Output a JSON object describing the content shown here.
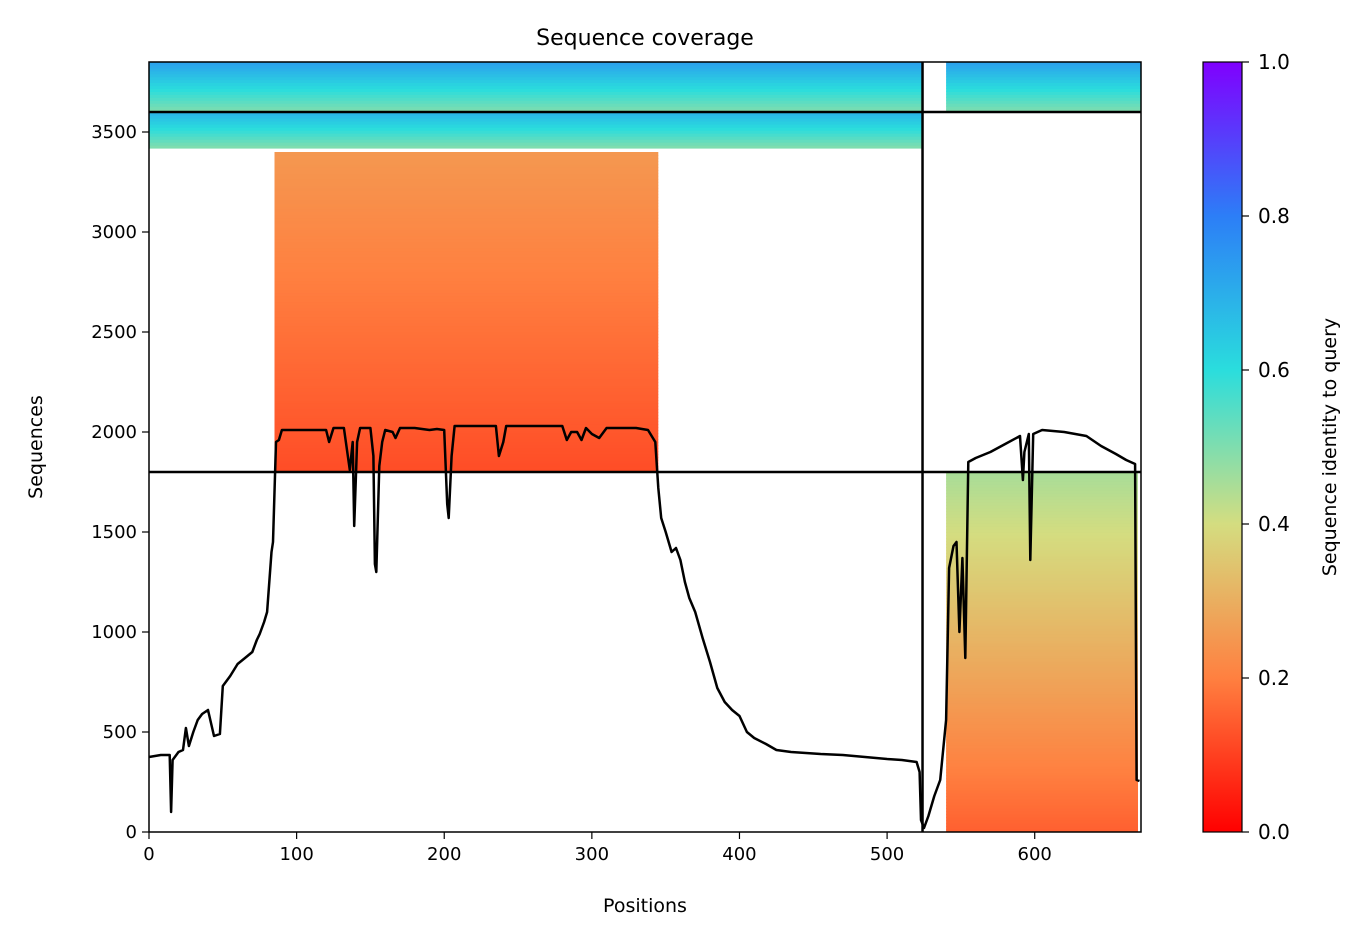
{
  "chart_data": {
    "type": "heatmap",
    "title": "Sequence coverage",
    "xlabel": "Positions",
    "ylabel": "Sequences",
    "xlim": [
      0,
      672
    ],
    "ylim": [
      0,
      3850
    ],
    "xticks": [
      0,
      100,
      200,
      300,
      400,
      500,
      600
    ],
    "yticks": [
      0,
      500,
      1000,
      1500,
      2000,
      2500,
      3000,
      3500
    ],
    "grid": false,
    "colorbar": {
      "label": "Sequence identity to query",
      "range": [
        0,
        1
      ],
      "ticks": [
        "0.0",
        "0.2",
        "0.4",
        "0.6",
        "0.8",
        "1.0"
      ],
      "colormap": "rainbow_r",
      "stops": [
        "#ff0000",
        "#ff8040",
        "#d4dd80",
        "#2adddd",
        "#2c7ef7",
        "#8000ff"
      ]
    },
    "separators": {
      "x": 524,
      "y": [
        1800,
        3600
      ]
    },
    "msa_blocks": [
      {
        "name": "block-chain1-paired",
        "x": [
          0,
          524
        ],
        "y": [
          3600,
          3850
        ],
        "identity_bottom": 0.5,
        "identity_top": 0.72
      },
      {
        "name": "block-chain1-unpaired-high",
        "x": [
          0,
          524
        ],
        "y": [
          3420,
          3600
        ],
        "identity_bottom": 0.5,
        "identity_top": 0.68
      },
      {
        "name": "block-chain1-unpaired",
        "x": [
          85,
          345
        ],
        "y": [
          1800,
          3400
        ],
        "identity_bottom": 0.12,
        "identity_top": 0.25
      },
      {
        "name": "block-chain2-paired",
        "x": [
          540,
          672
        ],
        "y": [
          3600,
          3850
        ],
        "identity_bottom": 0.5,
        "identity_top": 0.72
      },
      {
        "name": "block-chain2-unpaired",
        "x": [
          540,
          670
        ],
        "y": [
          0,
          1800
        ],
        "identity_bottom": 0.15,
        "identity_top": 0.45
      }
    ],
    "series": [
      {
        "values": [
          [
            0,
            375
          ],
          [
            8,
            385
          ],
          [
            14,
            385
          ],
          [
            15,
            100
          ],
          [
            16,
            360
          ],
          [
            20,
            400
          ],
          [
            23,
            410
          ],
          [
            25,
            520
          ],
          [
            27,
            430
          ],
          [
            30,
            500
          ],
          [
            33,
            560
          ],
          [
            36,
            590
          ],
          [
            40,
            610
          ],
          [
            44,
            480
          ],
          [
            48,
            490
          ],
          [
            50,
            730
          ],
          [
            55,
            780
          ],
          [
            60,
            840
          ],
          [
            65,
            870
          ],
          [
            70,
            900
          ],
          [
            73,
            960
          ],
          [
            75,
            990
          ],
          [
            78,
            1050
          ],
          [
            80,
            1100
          ],
          [
            83,
            1400
          ],
          [
            84,
            1450
          ],
          [
            86,
            1950
          ],
          [
            88,
            1960
          ],
          [
            90,
            2010
          ],
          [
            100,
            2010
          ],
          [
            110,
            2010
          ],
          [
            120,
            2010
          ],
          [
            122,
            1950
          ],
          [
            125,
            2020
          ],
          [
            132,
            2020
          ],
          [
            136,
            1810
          ],
          [
            138,
            1950
          ],
          [
            139,
            1530
          ],
          [
            141,
            1950
          ],
          [
            143,
            2020
          ],
          [
            150,
            2020
          ],
          [
            152,
            1880
          ],
          [
            153,
            1340
          ],
          [
            154,
            1300
          ],
          [
            156,
            1830
          ],
          [
            158,
            1950
          ],
          [
            160,
            2010
          ],
          [
            165,
            2000
          ],
          [
            167,
            1970
          ],
          [
            170,
            2020
          ],
          [
            180,
            2020
          ],
          [
            190,
            2010
          ],
          [
            195,
            2015
          ],
          [
            200,
            2010
          ],
          [
            202,
            1640
          ],
          [
            203,
            1570
          ],
          [
            205,
            1880
          ],
          [
            207,
            2030
          ],
          [
            215,
            2030
          ],
          [
            225,
            2030
          ],
          [
            235,
            2030
          ],
          [
            237,
            1880
          ],
          [
            240,
            1950
          ],
          [
            242,
            2030
          ],
          [
            250,
            2030
          ],
          [
            270,
            2030
          ],
          [
            280,
            2030
          ],
          [
            283,
            1960
          ],
          [
            286,
            2000
          ],
          [
            290,
            2000
          ],
          [
            293,
            1960
          ],
          [
            296,
            2020
          ],
          [
            300,
            1990
          ],
          [
            305,
            1970
          ],
          [
            310,
            2020
          ],
          [
            320,
            2020
          ],
          [
            330,
            2020
          ],
          [
            338,
            2010
          ],
          [
            343,
            1950
          ],
          [
            345,
            1720
          ],
          [
            347,
            1570
          ],
          [
            350,
            1500
          ],
          [
            354,
            1400
          ],
          [
            357,
            1420
          ],
          [
            360,
            1360
          ],
          [
            363,
            1250
          ],
          [
            366,
            1170
          ],
          [
            370,
            1100
          ],
          [
            375,
            970
          ],
          [
            380,
            850
          ],
          [
            385,
            720
          ],
          [
            390,
            650
          ],
          [
            395,
            610
          ],
          [
            400,
            580
          ],
          [
            405,
            500
          ],
          [
            410,
            470
          ],
          [
            418,
            440
          ],
          [
            425,
            410
          ],
          [
            435,
            400
          ],
          [
            445,
            395
          ],
          [
            455,
            390
          ],
          [
            470,
            385
          ],
          [
            485,
            375
          ],
          [
            500,
            365
          ],
          [
            510,
            360
          ],
          [
            520,
            350
          ],
          [
            522,
            300
          ],
          [
            523,
            60
          ],
          [
            525,
            20
          ],
          [
            528,
            80
          ],
          [
            532,
            180
          ],
          [
            536,
            260
          ],
          [
            540,
            560
          ],
          [
            542,
            1320
          ],
          [
            545,
            1430
          ],
          [
            547,
            1450
          ],
          [
            549,
            1000
          ],
          [
            551,
            1370
          ],
          [
            553,
            870
          ],
          [
            555,
            1850
          ],
          [
            560,
            1870
          ],
          [
            570,
            1900
          ],
          [
            580,
            1940
          ],
          [
            590,
            1980
          ],
          [
            592,
            1760
          ],
          [
            593,
            1900
          ],
          [
            596,
            1990
          ],
          [
            597,
            1360
          ],
          [
            599,
            1990
          ],
          [
            605,
            2010
          ],
          [
            620,
            2000
          ],
          [
            635,
            1980
          ],
          [
            645,
            1930
          ],
          [
            655,
            1890
          ],
          [
            662,
            1860
          ],
          [
            668,
            1840
          ],
          [
            669,
            260
          ],
          [
            671,
            255
          ]
        ]
      }
    ]
  }
}
